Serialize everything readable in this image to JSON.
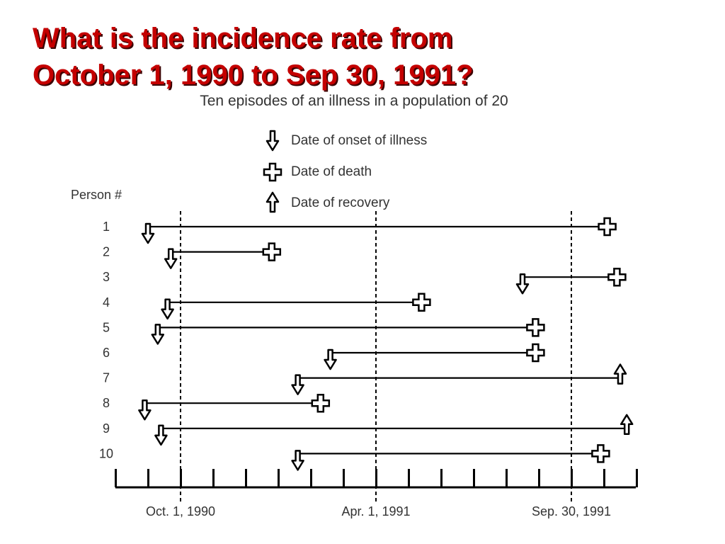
{
  "slide": {
    "title_line1": "What is the incidence rate from",
    "title_line2": "October 1, 1990 to Sep 30, 1991?"
  },
  "diagram": {
    "title": "Ten episodes of an illness in a population of 20",
    "legend": {
      "onset": "Date of onset of illness",
      "death": "Date of death",
      "recovery": "Date of recovery"
    },
    "person_header": "Person #",
    "axis_labels": {
      "oct_1_1990": "Oct. 1, 1990",
      "apr_1_1991": "Apr. 1, 1991",
      "sep_30_1991": "Sep. 30, 1991"
    },
    "people": [
      {
        "label": "1",
        "onset_month": -1.0,
        "outcome": "death",
        "outcome_month": 13.1
      },
      {
        "label": "2",
        "onset_month": -0.3,
        "outcome": "death",
        "outcome_month": 2.8
      },
      {
        "label": "3",
        "onset_month": 10.5,
        "outcome": "death",
        "outcome_month": 13.4
      },
      {
        "label": "4",
        "onset_month": -0.4,
        "outcome": "death",
        "outcome_month": 7.4
      },
      {
        "label": "5",
        "onset_month": -0.7,
        "outcome": "death",
        "outcome_month": 10.9
      },
      {
        "label": "6",
        "onset_month": 4.6,
        "outcome": "death",
        "outcome_month": 10.9
      },
      {
        "label": "7",
        "onset_month": 3.6,
        "outcome": "recovery",
        "outcome_month": 13.5
      },
      {
        "label": "8",
        "onset_month": -1.1,
        "outcome": "death",
        "outcome_month": 4.3
      },
      {
        "label": "9",
        "onset_month": -0.6,
        "outcome": "recovery",
        "outcome_month": 13.7
      },
      {
        "label": "10",
        "onset_month": 3.6,
        "outcome": "death",
        "outcome_month": 12.9
      }
    ]
  }
}
